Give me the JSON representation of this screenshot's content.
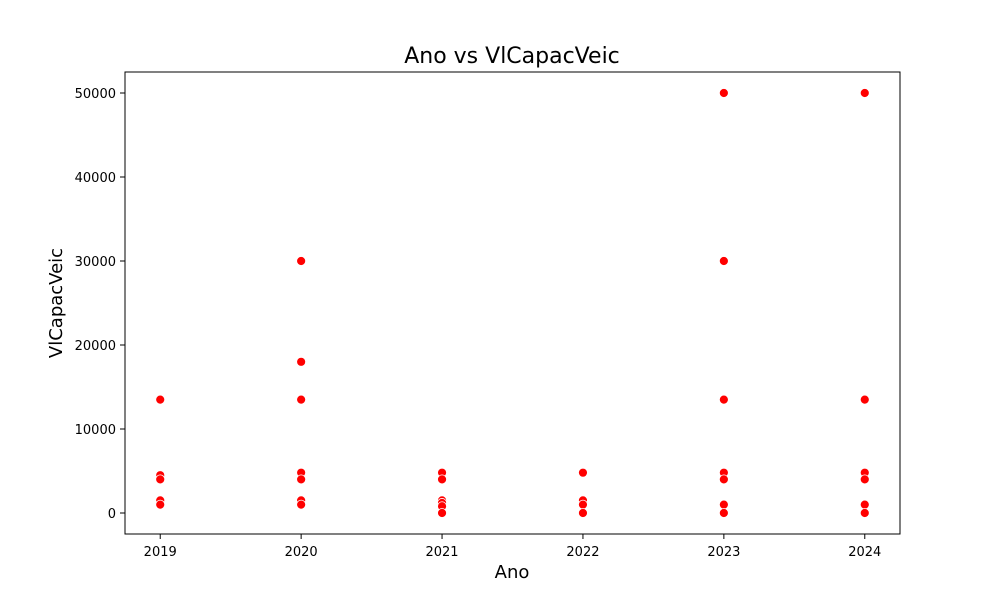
{
  "chart_data": {
    "type": "scatter",
    "title": "Ano vs VlCapacVeic",
    "xlabel": "Ano",
    "ylabel": "VlCapacVeic",
    "xlim": [
      2018.75,
      2024.25
    ],
    "ylim": [
      -2500,
      52500
    ],
    "xticks": [
      2019,
      2020,
      2021,
      2022,
      2023,
      2024
    ],
    "yticks": [
      0,
      10000,
      20000,
      30000,
      40000,
      50000
    ],
    "grid": false,
    "color": "#ff0000",
    "points": [
      {
        "x": 2019,
        "y": 13500
      },
      {
        "x": 2019,
        "y": 4500
      },
      {
        "x": 2019,
        "y": 4000
      },
      {
        "x": 2019,
        "y": 1500
      },
      {
        "x": 2019,
        "y": 1000
      },
      {
        "x": 2020,
        "y": 30000
      },
      {
        "x": 2020,
        "y": 18000
      },
      {
        "x": 2020,
        "y": 13500
      },
      {
        "x": 2020,
        "y": 4800
      },
      {
        "x": 2020,
        "y": 4000
      },
      {
        "x": 2020,
        "y": 1500
      },
      {
        "x": 2020,
        "y": 1000
      },
      {
        "x": 2021,
        "y": 4800
      },
      {
        "x": 2021,
        "y": 4000
      },
      {
        "x": 2021,
        "y": 1500
      },
      {
        "x": 2021,
        "y": 1200
      },
      {
        "x": 2021,
        "y": 800
      },
      {
        "x": 2021,
        "y": 0
      },
      {
        "x": 2022,
        "y": 4800
      },
      {
        "x": 2022,
        "y": 1500
      },
      {
        "x": 2022,
        "y": 1000
      },
      {
        "x": 2022,
        "y": 0
      },
      {
        "x": 2023,
        "y": 50000
      },
      {
        "x": 2023,
        "y": 30000
      },
      {
        "x": 2023,
        "y": 13500
      },
      {
        "x": 2023,
        "y": 4800
      },
      {
        "x": 2023,
        "y": 4000
      },
      {
        "x": 2023,
        "y": 1000
      },
      {
        "x": 2023,
        "y": 0
      },
      {
        "x": 2024,
        "y": 50000
      },
      {
        "x": 2024,
        "y": 13500
      },
      {
        "x": 2024,
        "y": 4800
      },
      {
        "x": 2024,
        "y": 4000
      },
      {
        "x": 2024,
        "y": 1000
      },
      {
        "x": 2024,
        "y": 0
      }
    ]
  }
}
